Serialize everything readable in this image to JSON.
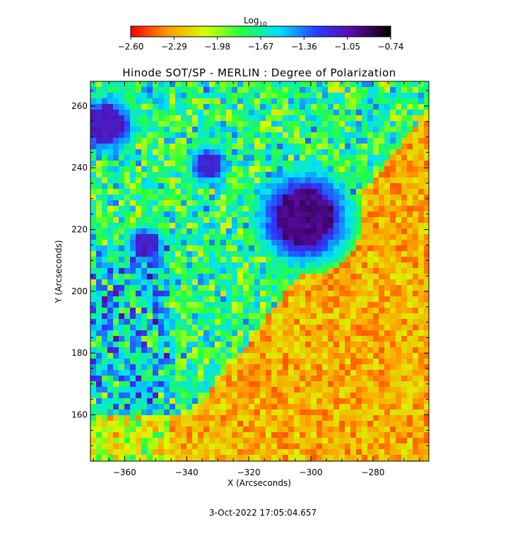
{
  "chart_data": {
    "type": "heatmap",
    "title": "Hinode SOT/SP - MERLIN : Degree of Polarization",
    "xlabel": "X (Arcseconds)",
    "ylabel": "Y (Arcseconds)",
    "xlim": [
      -371,
      -262
    ],
    "ylim": [
      145,
      268
    ],
    "x_ticks": [
      -360,
      -340,
      -320,
      -300,
      -280
    ],
    "y_ticks": [
      160,
      180,
      200,
      220,
      240,
      260
    ],
    "x_tick_labels": [
      "−360",
      "−340",
      "−320",
      "−300",
      "−280"
    ],
    "y_tick_labels": [
      "160",
      "180",
      "200",
      "220",
      "240",
      "260"
    ],
    "colorbar": {
      "label_base": "Log",
      "label_sub": "10",
      "min": -2.6,
      "max": -0.74,
      "ticks": [
        -2.6,
        -2.29,
        -1.98,
        -1.67,
        -1.36,
        -1.05,
        -0.74
      ],
      "tick_labels": [
        "−2.60",
        "−2.29",
        "−1.98",
        "−1.67",
        "−1.36",
        "−1.05",
        "−0.74"
      ],
      "colormap": "rainbow (red → yellow → green → cyan → blue → violet → black)",
      "colors": [
        "#ff0000",
        "#ff9a00",
        "#d6ff00",
        "#22ff44",
        "#00e0ff",
        "#2a3cff",
        "#5a0aa0",
        "#000000"
      ]
    },
    "features": [
      {
        "name": "sunspot",
        "x": -302,
        "y": 224,
        "radius": 9,
        "value": -0.9
      },
      {
        "name": "pore",
        "x": -366,
        "y": 254,
        "radius": 6,
        "value": -1.05
      },
      {
        "name": "pore",
        "x": -333,
        "y": 241,
        "radius": 4,
        "value": -1.1
      },
      {
        "name": "pore",
        "x": -353,
        "y": 215,
        "radius": 4,
        "value": -1.1
      }
    ],
    "grid": false,
    "timestamp": "3-Oct-2022 17:05:04.657"
  }
}
